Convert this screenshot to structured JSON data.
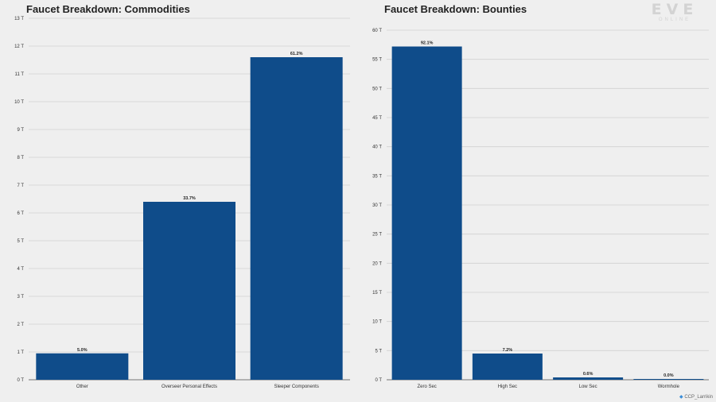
{
  "logo": {
    "main": "EVE",
    "sub": "ONLINE"
  },
  "credit": {
    "icon": "twitter-bird-icon",
    "handle": "CCP_Larrikin"
  },
  "colors": {
    "bar": "#0f4c8a",
    "grid": "#d0d0d0",
    "axis": "#555555",
    "background": "#efefef"
  },
  "chart_data": [
    {
      "type": "bar",
      "title": "Faucet Breakdown: Commodities",
      "categories": [
        "Other",
        "Overseer Personal Effects",
        "Sleeper Components"
      ],
      "values": [
        0.95,
        6.4,
        11.6
      ],
      "labels": [
        "5.0%",
        "33.7%",
        "61.2%"
      ],
      "ylim": [
        0,
        13
      ],
      "yticks": [
        "0 T",
        "1 T",
        "2 T",
        "3 T",
        "4 T",
        "5 T",
        "6 T",
        "7 T",
        "8 T",
        "9 T",
        "10 T",
        "11 T",
        "12 T",
        "13 T"
      ],
      "grid": true
    },
    {
      "type": "bar",
      "title": "Faucet Breakdown: Bounties",
      "categories": [
        "Zero Sec",
        "High Sec",
        "Low Sec",
        "Wormhole"
      ],
      "values": [
        57.2,
        4.5,
        0.4,
        0.05
      ],
      "labels": [
        "92.1%",
        "7.2%",
        "0.6%",
        "0.0%"
      ],
      "ylim": [
        0,
        60
      ],
      "yticks": [
        "0 T",
        "5 T",
        "10 T",
        "15 T",
        "20 T",
        "25 T",
        "30 T",
        "35 T",
        "40 T",
        "45 T",
        "50 T",
        "55 T",
        "60 T"
      ],
      "grid": true
    }
  ]
}
